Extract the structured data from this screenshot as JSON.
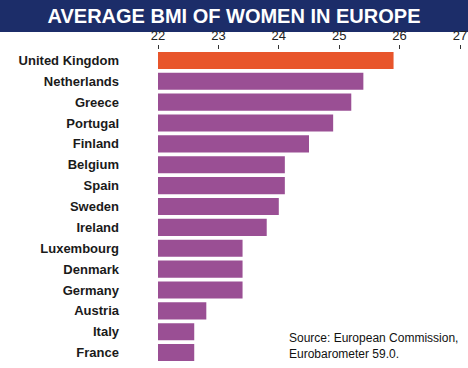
{
  "chart_data": {
    "type": "bar",
    "orientation": "horizontal",
    "title": "AVERAGE BMI OF WOMEN IN EUROPE",
    "categories": [
      "United Kingdom",
      "Netherlands",
      "Greece",
      "Portugal",
      "Finland",
      "Belgium",
      "Spain",
      "Sweden",
      "Ireland",
      "Luxembourg",
      "Denmark",
      "Germany",
      "Austria",
      "Italy",
      "France"
    ],
    "values": [
      25.9,
      25.4,
      25.2,
      24.9,
      24.5,
      24.1,
      24.1,
      24.0,
      23.8,
      23.4,
      23.4,
      23.4,
      22.8,
      22.6,
      22.6
    ],
    "colors": [
      "#e8552b",
      "#9a4f94",
      "#9a4f94",
      "#9a4f94",
      "#9a4f94",
      "#9a4f94",
      "#9a4f94",
      "#9a4f94",
      "#9a4f94",
      "#9a4f94",
      "#9a4f94",
      "#9a4f94",
      "#9a4f94",
      "#9a4f94",
      "#9a4f94"
    ],
    "xlim": [
      22,
      27
    ],
    "xticks": [
      22,
      23,
      24,
      25,
      26,
      27
    ],
    "grid": false,
    "annotation": "Source: European Commission,\nEurobarometer 59.0."
  }
}
